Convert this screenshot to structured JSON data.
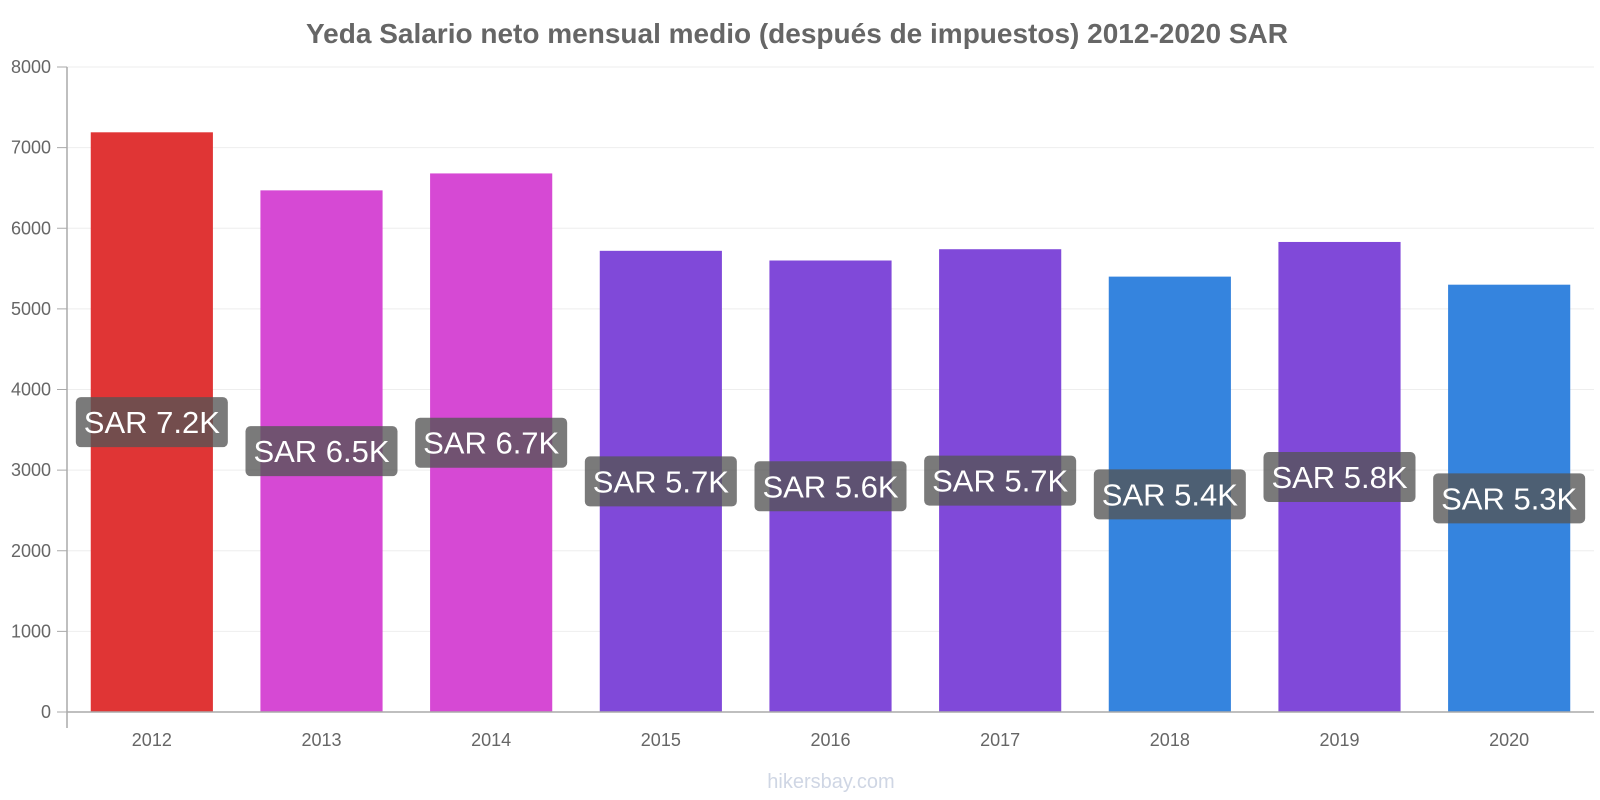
{
  "chart_data": {
    "type": "bar",
    "title": "Yeda Salario neto mensual medio (después de impuestos) 2012-2020 SAR",
    "xlabel": "",
    "ylabel": "",
    "ylim": [
      0,
      8000
    ],
    "y_ticks": [
      0,
      1000,
      2000,
      3000,
      4000,
      5000,
      6000,
      7000,
      8000
    ],
    "grid": true,
    "legend": "none",
    "categories": [
      "2012",
      "2013",
      "2014",
      "2015",
      "2016",
      "2017",
      "2018",
      "2019",
      "2020"
    ],
    "values": [
      7190,
      6470,
      6680,
      5720,
      5600,
      5740,
      5400,
      5830,
      5300
    ],
    "value_labels": [
      "SAR 7.2K",
      "SAR 6.5K",
      "SAR 6.7K",
      "SAR 5.7K",
      "SAR 5.6K",
      "SAR 5.7K",
      "SAR 5.4K",
      "SAR 5.8K",
      "SAR 5.3K"
    ],
    "bar_colors": [
      "#e03535",
      "#d649d4",
      "#d649d4",
      "#8049d9",
      "#8049d9",
      "#8049d9",
      "#3584de",
      "#8049d9",
      "#3584de"
    ],
    "label_box_color": "#555555",
    "axis_color": "#aaaaaa",
    "grid_color": "#eeeeee",
    "watermark": "hikersbay.com"
  }
}
